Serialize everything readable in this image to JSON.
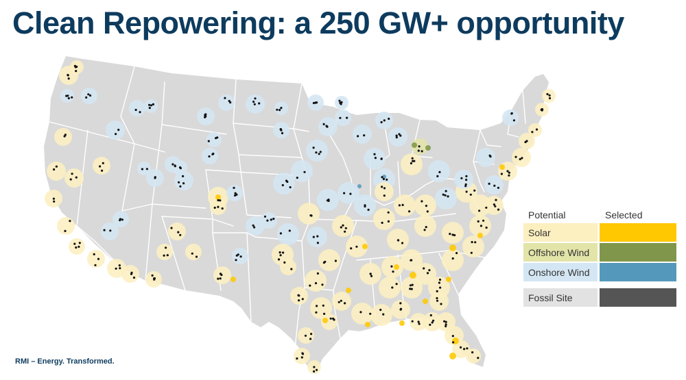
{
  "header": {
    "title": "Clean Repowering: a 250 GW+ opportunity"
  },
  "legend": {
    "potential_header": "Potential",
    "selected_header": "Selected",
    "items": [
      {
        "label": "Solar",
        "potential_color": "#fcefc0",
        "selected_color": "#ffc800"
      },
      {
        "label": "Offshore Wind",
        "potential_color": "#e2e4a8",
        "selected_color": "#80964a"
      },
      {
        "label": "Onshore Wind",
        "potential_color": "#d4e6f3",
        "selected_color": "#5499bb"
      },
      {
        "label": "Fossil Site",
        "potential_color": "#e2e2e2",
        "selected_color": "#555555"
      }
    ]
  },
  "map": {
    "land_color": "#d9d9d9",
    "border_color": "#ffffff",
    "fossil_site_color": "#111111",
    "region_names": [
      "Solar",
      "Onshore Wind",
      "Offshore Wind"
    ]
  },
  "footer": {
    "text": "RMI – Energy. Transformed."
  }
}
